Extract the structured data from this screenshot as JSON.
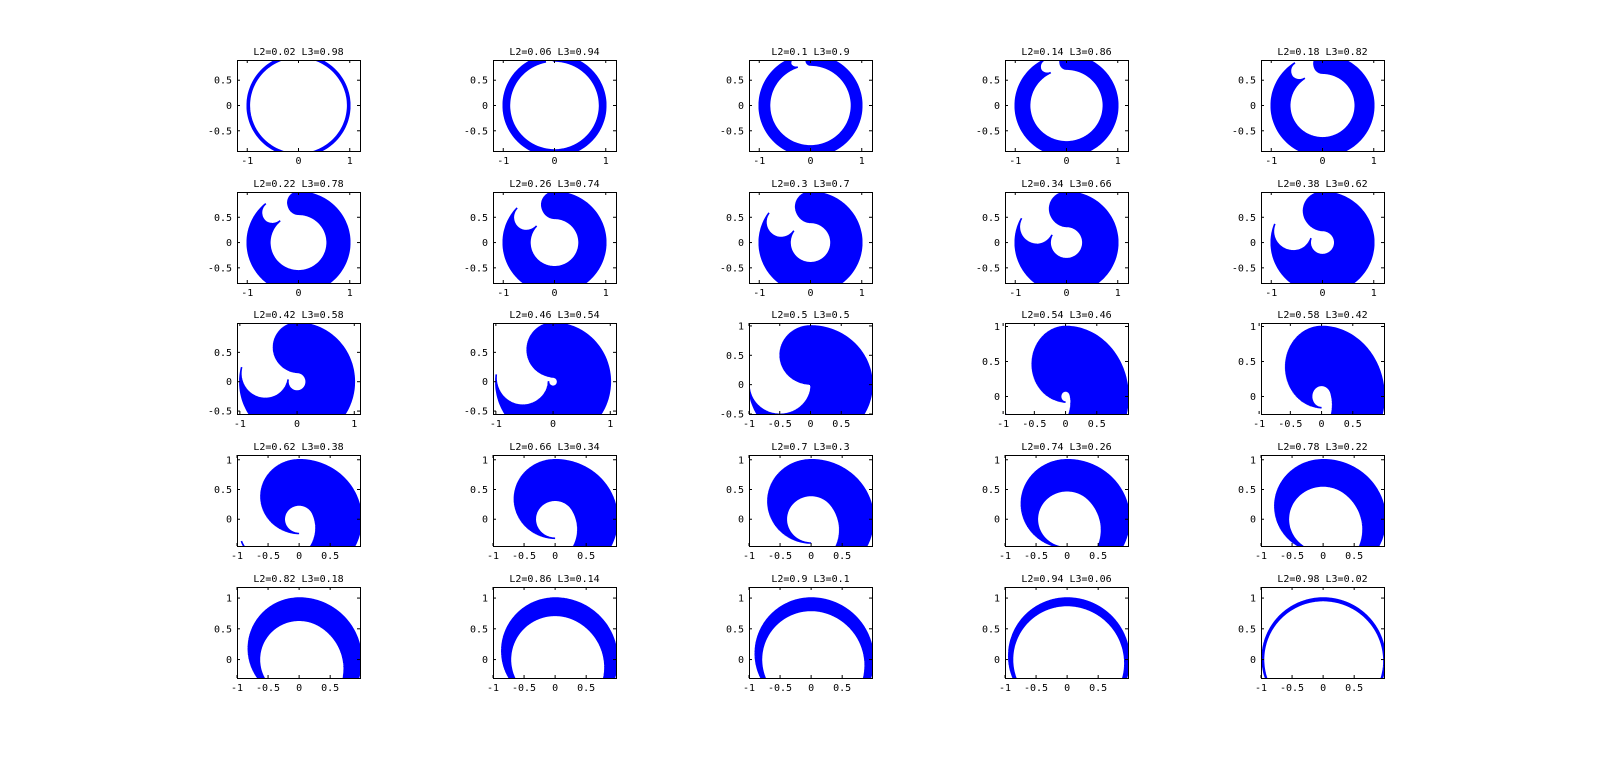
{
  "figure": {
    "rows": 5,
    "cols": 5,
    "fill_color": "#0000ff",
    "frame_color": "#000000"
  },
  "chart_data": [
    {
      "type": "scatter",
      "title": "L2=0.02 L3=0.98",
      "l2": 0.02,
      "xlim": [
        -1.2,
        1.2
      ],
      "ylim": [
        -0.9,
        0.9
      ],
      "xticks": [
        -1,
        0,
        1
      ],
      "yticks": [
        -0.5,
        0,
        0.5
      ],
      "xtick_labels": [
        "-1",
        "0",
        "1"
      ],
      "ytick_labels": [
        "-0.5",
        "0",
        "0.5"
      ]
    },
    {
      "type": "scatter",
      "title": "L2=0.06 L3=0.94",
      "l2": 0.06,
      "xlim": [
        -1.2,
        1.2
      ],
      "ylim": [
        -0.9,
        0.9
      ],
      "xticks": [
        -1,
        0,
        1
      ],
      "yticks": [
        -0.5,
        0,
        0.5
      ],
      "xtick_labels": [
        "-1",
        "0",
        "1"
      ],
      "ytick_labels": [
        "-0.5",
        "0",
        "0.5"
      ]
    },
    {
      "type": "scatter",
      "title": "L2=0.1 L3=0.9",
      "l2": 0.1,
      "xlim": [
        -1.2,
        1.2
      ],
      "ylim": [
        -0.9,
        0.9
      ],
      "xticks": [
        -1,
        0,
        1
      ],
      "yticks": [
        -0.5,
        0,
        0.5
      ],
      "xtick_labels": [
        "-1",
        "0",
        "1"
      ],
      "ytick_labels": [
        "-0.5",
        "0",
        "0.5"
      ]
    },
    {
      "type": "scatter",
      "title": "L2=0.14 L3=0.86",
      "l2": 0.14,
      "xlim": [
        -1.2,
        1.2
      ],
      "ylim": [
        -0.9,
        0.9
      ],
      "xticks": [
        -1,
        0,
        1
      ],
      "yticks": [
        -0.5,
        0,
        0.5
      ],
      "xtick_labels": [
        "-1",
        "0",
        "1"
      ],
      "ytick_labels": [
        "-0.5",
        "0",
        "0.5"
      ]
    },
    {
      "type": "scatter",
      "title": "L2=0.18 L3=0.82",
      "l2": 0.18,
      "xlim": [
        -1.2,
        1.2
      ],
      "ylim": [
        -0.9,
        0.9
      ],
      "xticks": [
        -1,
        0,
        1
      ],
      "yticks": [
        -0.5,
        0,
        0.5
      ],
      "xtick_labels": [
        "-1",
        "0",
        "1"
      ],
      "ytick_labels": [
        "-0.5",
        "0",
        "0.5"
      ]
    },
    {
      "type": "scatter",
      "title": "L2=0.22 L3=0.78",
      "l2": 0.22,
      "xlim": [
        -1.2,
        1.2
      ],
      "ylim": [
        -0.8,
        1.0
      ],
      "xticks": [
        -1,
        0,
        1
      ],
      "yticks": [
        -0.5,
        0,
        0.5
      ],
      "xtick_labels": [
        "-1",
        "0",
        "1"
      ],
      "ytick_labels": [
        "-0.5",
        "0",
        "0.5"
      ]
    },
    {
      "type": "scatter",
      "title": "L2=0.26 L3=0.74",
      "l2": 0.26,
      "xlim": [
        -1.2,
        1.2
      ],
      "ylim": [
        -0.8,
        1.0
      ],
      "xticks": [
        -1,
        0,
        1
      ],
      "yticks": [
        -0.5,
        0,
        0.5
      ],
      "xtick_labels": [
        "-1",
        "0",
        "1"
      ],
      "ytick_labels": [
        "-0.5",
        "0",
        "0.5"
      ]
    },
    {
      "type": "scatter",
      "title": "L2=0.3 L3=0.7",
      "l2": 0.3,
      "xlim": [
        -1.2,
        1.2
      ],
      "ylim": [
        -0.8,
        1.0
      ],
      "xticks": [
        -1,
        0,
        1
      ],
      "yticks": [
        -0.5,
        0,
        0.5
      ],
      "xtick_labels": [
        "-1",
        "0",
        "1"
      ],
      "ytick_labels": [
        "-0.5",
        "0",
        "0.5"
      ]
    },
    {
      "type": "scatter",
      "title": "L2=0.34 L3=0.66",
      "l2": 0.34,
      "xlim": [
        -1.2,
        1.2
      ],
      "ylim": [
        -0.8,
        1.0
      ],
      "xticks": [
        -1,
        0,
        1
      ],
      "yticks": [
        -0.5,
        0,
        0.5
      ],
      "xtick_labels": [
        "-1",
        "0",
        "1"
      ],
      "ytick_labels": [
        "-0.5",
        "0",
        "0.5"
      ]
    },
    {
      "type": "scatter",
      "title": "L2=0.38 L3=0.62",
      "l2": 0.38,
      "xlim": [
        -1.2,
        1.2
      ],
      "ylim": [
        -0.8,
        1.0
      ],
      "xticks": [
        -1,
        0,
        1
      ],
      "yticks": [
        -0.5,
        0,
        0.5
      ],
      "xtick_labels": [
        "-1",
        "0",
        "1"
      ],
      "ytick_labels": [
        "-0.5",
        "0",
        "0.5"
      ]
    },
    {
      "type": "scatter",
      "title": "L2=0.42 L3=0.58",
      "l2": 0.42,
      "xlim": [
        -1.05,
        1.1
      ],
      "ylim": [
        -0.55,
        1.0
      ],
      "xticks": [
        -1,
        0,
        1
      ],
      "yticks": [
        -0.5,
        0,
        0.5
      ],
      "xtick_labels": [
        "-1",
        "0",
        "1"
      ],
      "ytick_labels": [
        "-0.5",
        "0",
        "0.5"
      ]
    },
    {
      "type": "scatter",
      "title": "L2=0.46 L3=0.54",
      "l2": 0.46,
      "xlim": [
        -1.05,
        1.1
      ],
      "ylim": [
        -0.55,
        1.0
      ],
      "xticks": [
        -1,
        0,
        1
      ],
      "yticks": [
        -0.5,
        0,
        0.5
      ],
      "xtick_labels": [
        "-1",
        "0",
        "1"
      ],
      "ytick_labels": [
        "-0.5",
        "0",
        "0.5"
      ]
    },
    {
      "type": "scatter",
      "title": "L2=0.5 L3=0.5",
      "l2": 0.5,
      "xlim": [
        -1.0,
        1.0
      ],
      "ylim": [
        -0.5,
        1.05
      ],
      "xticks": [
        -1,
        -0.5,
        0,
        0.5
      ],
      "yticks": [
        -0.5,
        0,
        0.5,
        1
      ],
      "xtick_labels": [
        "-1",
        "-0.5",
        "0",
        "0.5"
      ],
      "ytick_labels": [
        "-0.5",
        "0",
        "0.5",
        "1"
      ]
    },
    {
      "type": "scatter",
      "title": "L2=0.54 L3=0.46",
      "l2": 0.54,
      "xlim": [
        -0.97,
        1.0
      ],
      "ylim": [
        -0.25,
        1.05
      ],
      "xticks": [
        -1,
        -0.5,
        0,
        0.5
      ],
      "yticks": [
        0,
        0.5,
        1
      ],
      "xtick_labels": [
        "-1",
        "-0.5",
        "0",
        "0.5"
      ],
      "ytick_labels": [
        "0",
        "0.5",
        "1"
      ]
    },
    {
      "type": "scatter",
      "title": "L2=0.58 L3=0.42",
      "l2": 0.58,
      "xlim": [
        -0.97,
        1.0
      ],
      "ylim": [
        -0.25,
        1.05
      ],
      "xticks": [
        -1,
        -0.5,
        0,
        0.5
      ],
      "yticks": [
        0,
        0.5,
        1
      ],
      "xtick_labels": [
        "-1",
        "-0.5",
        "0",
        "0.5"
      ],
      "ytick_labels": [
        "0",
        "0.5",
        "1"
      ]
    },
    {
      "type": "scatter",
      "title": "L2=0.62 L3=0.38",
      "l2": 0.62,
      "xlim": [
        -1.0,
        0.98
      ],
      "ylim": [
        -0.45,
        1.08
      ],
      "xticks": [
        -1,
        -0.5,
        0,
        0.5
      ],
      "yticks": [
        0,
        0.5,
        1
      ],
      "xtick_labels": [
        "-1",
        "-0.5",
        "0",
        "0.5"
      ],
      "ytick_labels": [
        "0",
        "0.5",
        "1"
      ]
    },
    {
      "type": "scatter",
      "title": "L2=0.66 L3=0.34",
      "l2": 0.66,
      "xlim": [
        -1.0,
        0.98
      ],
      "ylim": [
        -0.45,
        1.08
      ],
      "xticks": [
        -1,
        -0.5,
        0,
        0.5
      ],
      "yticks": [
        0,
        0.5,
        1
      ],
      "xtick_labels": [
        "-1",
        "-0.5",
        "0",
        "0.5"
      ],
      "ytick_labels": [
        "0",
        "0.5",
        "1"
      ]
    },
    {
      "type": "scatter",
      "title": "L2=0.7 L3=0.3",
      "l2": 0.7,
      "xlim": [
        -1.0,
        0.98
      ],
      "ylim": [
        -0.45,
        1.08
      ],
      "xticks": [
        -1,
        -0.5,
        0,
        0.5
      ],
      "yticks": [
        0,
        0.5,
        1
      ],
      "xtick_labels": [
        "-1",
        "-0.5",
        "0",
        "0.5"
      ],
      "ytick_labels": [
        "0",
        "0.5",
        "1"
      ]
    },
    {
      "type": "scatter",
      "title": "L2=0.74 L3=0.26",
      "l2": 0.74,
      "xlim": [
        -1.0,
        0.98
      ],
      "ylim": [
        -0.45,
        1.08
      ],
      "xticks": [
        -1,
        -0.5,
        0,
        0.5
      ],
      "yticks": [
        0,
        0.5,
        1
      ],
      "xtick_labels": [
        "-1",
        "-0.5",
        "0",
        "0.5"
      ],
      "ytick_labels": [
        "0",
        "0.5",
        "1"
      ]
    },
    {
      "type": "scatter",
      "title": "L2=0.78 L3=0.22",
      "l2": 0.78,
      "xlim": [
        -1.0,
        0.98
      ],
      "ylim": [
        -0.45,
        1.08
      ],
      "xticks": [
        -1,
        -0.5,
        0,
        0.5
      ],
      "yticks": [
        0,
        0.5,
        1
      ],
      "xtick_labels": [
        "-1",
        "-0.5",
        "0",
        "0.5"
      ],
      "ytick_labels": [
        "0",
        "0.5",
        "1"
      ]
    },
    {
      "type": "scatter",
      "title": "L2=0.82 L3=0.18",
      "l2": 0.82,
      "xlim": [
        -1.0,
        0.98
      ],
      "ylim": [
        -0.3,
        1.18
      ],
      "xticks": [
        -1,
        -0.5,
        0,
        0.5
      ],
      "yticks": [
        0,
        0.5,
        1
      ],
      "xtick_labels": [
        "-1",
        "-0.5",
        "0",
        "0.5"
      ],
      "ytick_labels": [
        "0",
        "0.5",
        "1"
      ]
    },
    {
      "type": "scatter",
      "title": "L2=0.86 L3=0.14",
      "l2": 0.86,
      "xlim": [
        -1.0,
        0.98
      ],
      "ylim": [
        -0.3,
        1.18
      ],
      "xticks": [
        -1,
        -0.5,
        0,
        0.5
      ],
      "yticks": [
        0,
        0.5,
        1
      ],
      "xtick_labels": [
        "-1",
        "-0.5",
        "0",
        "0.5"
      ],
      "ytick_labels": [
        "0",
        "0.5",
        "1"
      ]
    },
    {
      "type": "scatter",
      "title": "L2=0.9 L3=0.1",
      "l2": 0.9,
      "xlim": [
        -1.0,
        0.98
      ],
      "ylim": [
        -0.3,
        1.18
      ],
      "xticks": [
        -1,
        -0.5,
        0,
        0.5
      ],
      "yticks": [
        0,
        0.5,
        1
      ],
      "xtick_labels": [
        "-1",
        "-0.5",
        "0",
        "0.5"
      ],
      "ytick_labels": [
        "0",
        "0.5",
        "1"
      ]
    },
    {
      "type": "scatter",
      "title": "L2=0.94 L3=0.06",
      "l2": 0.94,
      "xlim": [
        -1.0,
        0.98
      ],
      "ylim": [
        -0.3,
        1.18
      ],
      "xticks": [
        -1,
        -0.5,
        0,
        0.5
      ],
      "yticks": [
        0,
        0.5,
        1
      ],
      "xtick_labels": [
        "-1",
        "-0.5",
        "0",
        "0.5"
      ],
      "ytick_labels": [
        "0",
        "0.5",
        "1"
      ]
    },
    {
      "type": "scatter",
      "title": "L2=0.98 L3=0.02",
      "l2": 0.98,
      "xlim": [
        -1.0,
        0.98
      ],
      "ylim": [
        -0.3,
        1.18
      ],
      "xticks": [
        -1,
        -0.5,
        0,
        0.5
      ],
      "yticks": [
        0,
        0.5,
        1
      ],
      "xtick_labels": [
        "-1",
        "-0.5",
        "0",
        "0.5"
      ],
      "ytick_labels": [
        "0",
        "0.5",
        "1"
      ]
    }
  ]
}
